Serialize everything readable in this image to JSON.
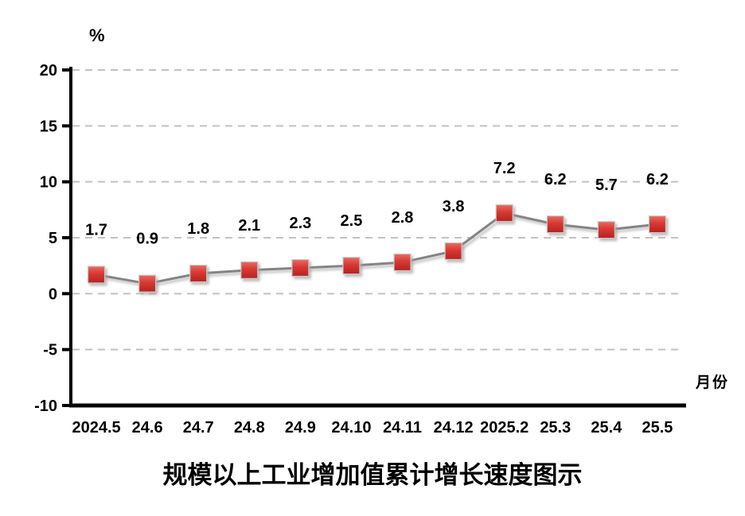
{
  "chart": {
    "unit_label": "%",
    "x_axis_label": "月份",
    "title": "规模以上工业增加值累计增长速度图示"
  },
  "chart_data": {
    "type": "line",
    "title": "规模以上工业增加值累计增长速度图示",
    "ylabel": "%",
    "xlabel": "月份",
    "categories": [
      "2024.5",
      "24.6",
      "24.7",
      "24.8",
      "24.9",
      "24.10",
      "24.11",
      "24.12",
      "2025.2",
      "25.3",
      "25.4",
      "25.5"
    ],
    "values": [
      1.7,
      0.9,
      1.8,
      2.1,
      2.3,
      2.5,
      2.8,
      3.8,
      7.2,
      6.2,
      5.7,
      6.2
    ],
    "ylim": [
      -10,
      20
    ],
    "yticks": [
      -10,
      -5,
      0,
      5,
      10,
      15,
      20
    ],
    "grid": true,
    "legend_position": "none",
    "data_labels": true,
    "colors": {
      "marker_fill_top": "#e8625a",
      "marker_fill_bottom": "#bc2521",
      "marker_border": "#c9c9c9",
      "line": "#848484",
      "gridline": "#c2c2c2",
      "axis": "#000000",
      "text": "#000000",
      "background": "#ffffff"
    }
  }
}
